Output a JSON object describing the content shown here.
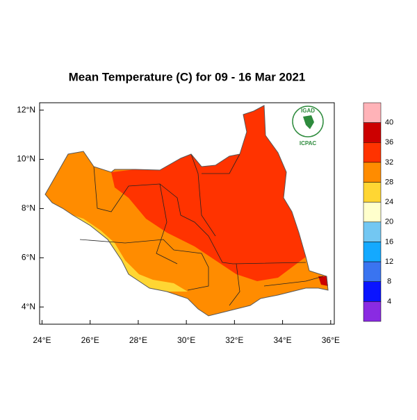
{
  "chart_data": {
    "type": "map",
    "title": "Mean Temperature (C) for 09 - 16 Mar 2021",
    "xlim": [
      23.9,
      36.15
    ],
    "ylim": [
      3.3,
      12.3
    ],
    "xticks": [
      {
        "value": 24,
        "label": "24°E"
      },
      {
        "value": 26,
        "label": "26°E"
      },
      {
        "value": 28,
        "label": "28°E"
      },
      {
        "value": 30,
        "label": "30°E"
      },
      {
        "value": 32,
        "label": "32°E"
      },
      {
        "value": 34,
        "label": "34°E"
      },
      {
        "value": 36,
        "label": "36°E"
      }
    ],
    "yticks": [
      {
        "value": 4,
        "label": "4°N"
      },
      {
        "value": 6,
        "label": "6°N"
      },
      {
        "value": 8,
        "label": "8°N"
      },
      {
        "value": 10,
        "label": "10°N"
      },
      {
        "value": 12,
        "label": "12°N"
      }
    ],
    "colorbar": {
      "levels": [
        40,
        36,
        32,
        28,
        24,
        20,
        16,
        12,
        8,
        4
      ],
      "colors": [
        "#ffb3b8",
        "#cc0000",
        "#ff3300",
        "#ff8c00",
        "#ffd633",
        "#ffffcc",
        "#73c7f2",
        "#14a9ff",
        "#3a74f0",
        "#0a14ff",
        "#8a2be2"
      ]
    },
    "logo": {
      "top": "IGAD",
      "bottom": "ICPAC"
    }
  }
}
